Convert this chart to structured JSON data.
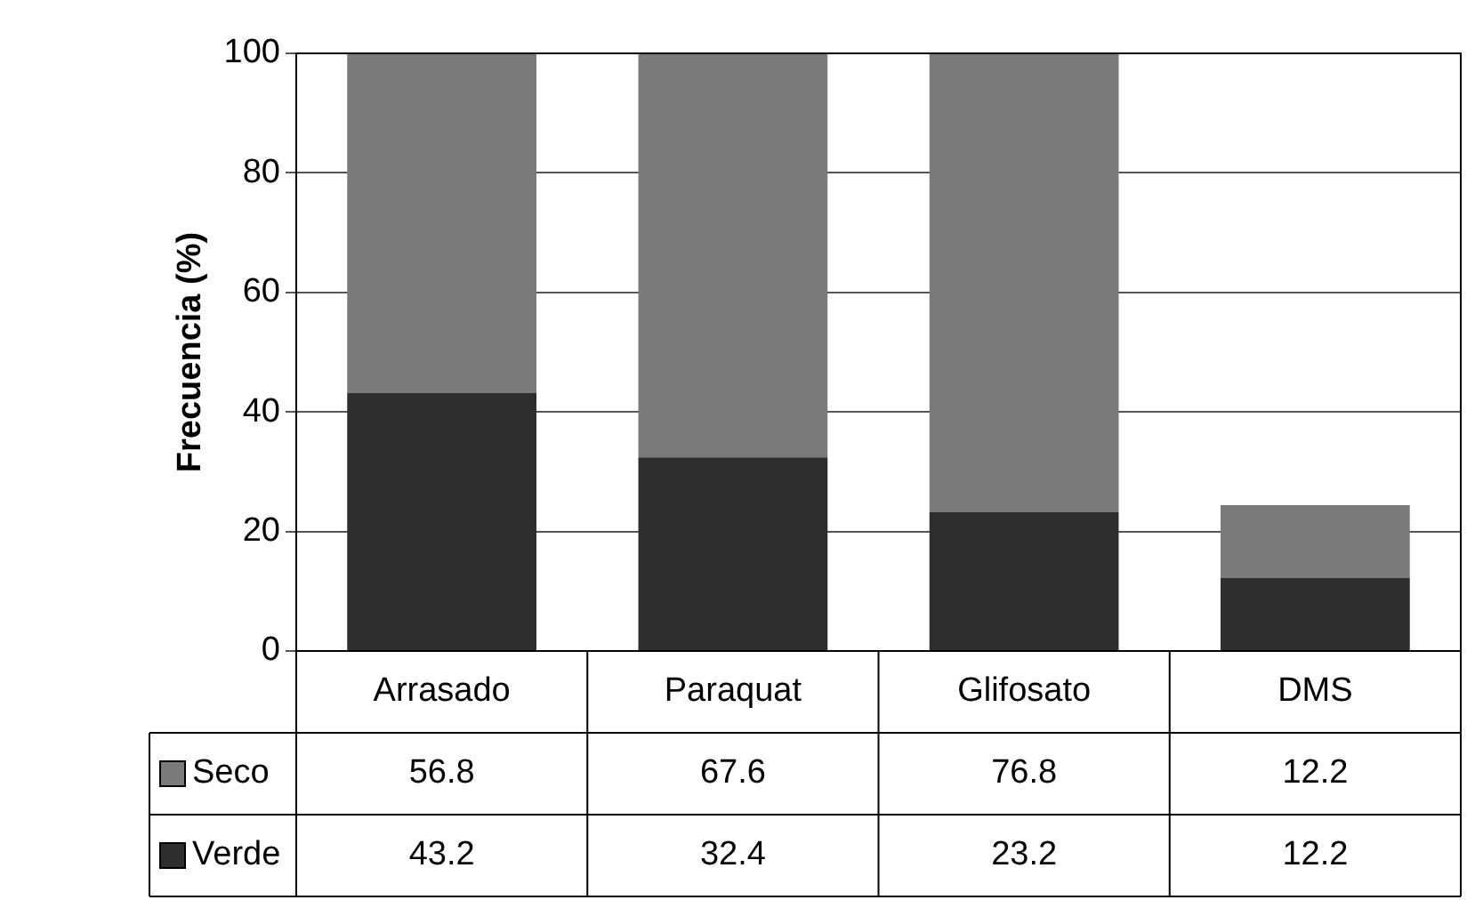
{
  "chart_data": {
    "type": "bar",
    "ylabel": "Frecuencia (%)",
    "categories": [
      "Arrasado",
      "Paraquat",
      "Glifosato",
      "DMS"
    ],
    "stacked": true,
    "ylim": [
      0,
      100
    ],
    "yticks": [
      0,
      20,
      40,
      60,
      80,
      100
    ],
    "grid": "y",
    "legend": "bottom left",
    "data_labels": true,
    "series": [
      {
        "name": "Verde",
        "color": "#2e2e2e",
        "values": [
          43.2,
          32.4,
          23.2,
          12.2
        ]
      },
      {
        "name": "Seco",
        "color": "#7a7a7a",
        "values": [
          56.8,
          67.6,
          76.8,
          12.2
        ]
      }
    ]
  }
}
